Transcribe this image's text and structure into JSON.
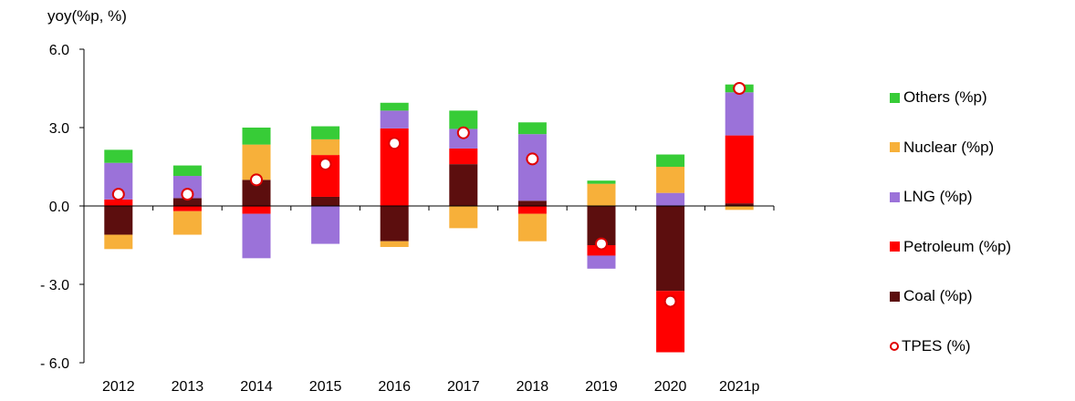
{
  "chart_data": {
    "type": "bar",
    "stacked": true,
    "ylabel": "yoy(%p, %)",
    "ylim": [
      -6.0,
      6.0
    ],
    "yticks": [
      6.0,
      3.0,
      0.0,
      -3.0,
      -6.0
    ],
    "ytick_labels": [
      "6.0",
      "3.0",
      "0.0",
      "- 3.0",
      "- 6.0"
    ],
    "categories": [
      "2012",
      "2013",
      "2014",
      "2015",
      "2016",
      "2017",
      "2018",
      "2019",
      "2020",
      "2021p"
    ],
    "series": [
      {
        "name": "Coal (%p)",
        "color": "#5c0e0e",
        "values": [
          -1.1,
          0.3,
          1.0,
          0.35,
          -1.35,
          1.6,
          0.2,
          -1.5,
          -3.25,
          0.1
        ]
      },
      {
        "name": "Petroleum (%p)",
        "color": "#ff0000",
        "values": [
          0.25,
          -0.2,
          -0.3,
          1.6,
          2.97,
          0.6,
          -0.3,
          -0.4,
          -2.35,
          2.6
        ]
      },
      {
        "name": "LNG (%p)",
        "color": "#9b72d9",
        "values": [
          1.4,
          0.85,
          -1.7,
          -1.45,
          0.68,
          0.75,
          2.55,
          -0.5,
          0.5,
          1.65
        ]
      },
      {
        "name": "Nuclear (%p)",
        "color": "#f7b03a",
        "values": [
          -0.55,
          -0.9,
          1.35,
          0.6,
          -0.22,
          -0.85,
          -1.05,
          0.85,
          1.0,
          -0.15
        ]
      },
      {
        "name": "Others (%p)",
        "color": "#37cc37",
        "values": [
          0.5,
          0.4,
          0.65,
          0.5,
          0.3,
          0.7,
          0.45,
          0.12,
          0.47,
          0.3
        ]
      }
    ],
    "line_series": {
      "name": "TPES (%)",
      "values": [
        0.45,
        0.45,
        1.0,
        1.6,
        2.4,
        2.8,
        1.8,
        -1.45,
        -3.65,
        4.5
      ]
    },
    "legend_position": "right",
    "legend_order": [
      "Others (%p)",
      "Nuclear (%p)",
      "LNG (%p)",
      "Petroleum (%p)",
      "Coal (%p)",
      "TPES (%)"
    ]
  },
  "legend": {
    "others": "Others (%p)",
    "nuclear": "Nuclear (%p)",
    "lng": "LNG (%p)",
    "petroleum": "Petroleum (%p)",
    "coal": "Coal (%p)",
    "tpes": "TPES (%)"
  },
  "colors": {
    "others": "#37cc37",
    "nuclear": "#f7b03a",
    "lng": "#9b72d9",
    "petroleum": "#ff0000",
    "coal": "#5c0e0e",
    "tpes_marker": "#e00000"
  }
}
